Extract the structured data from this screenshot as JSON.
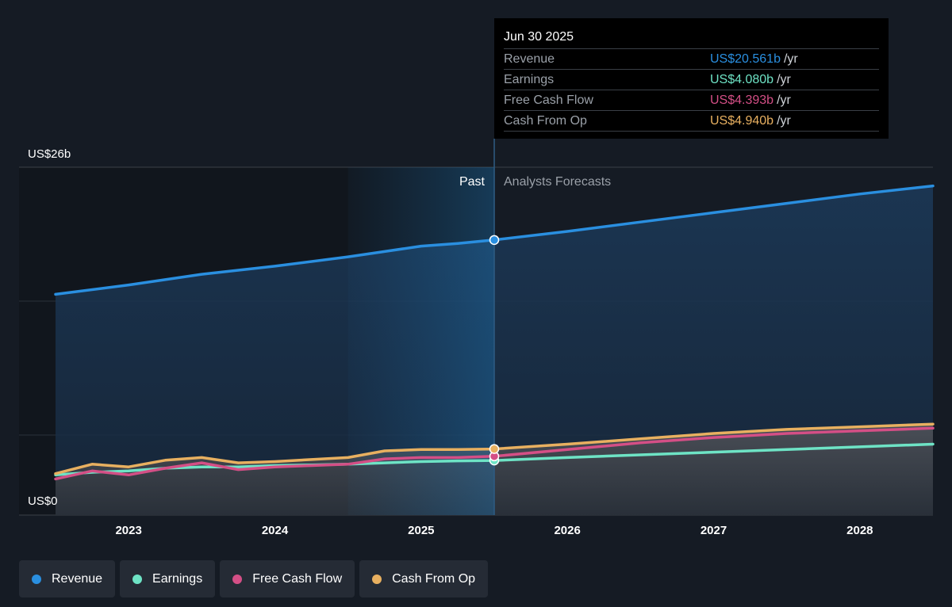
{
  "colors": {
    "revenue": "#2a8fe0",
    "earnings": "#6ee3c5",
    "free_cash_flow": "#d44f86",
    "cash_from_op": "#e8b060",
    "background": "#151b24",
    "grid": "#2c323c"
  },
  "tooltip": {
    "date": "Jun 30 2025",
    "rows": [
      {
        "label": "Revenue",
        "value": "US$20.561b",
        "unit": "/yr",
        "color": "#2a8fe0"
      },
      {
        "label": "Earnings",
        "value": "US$4.080b",
        "unit": "/yr",
        "color": "#6ee3c5"
      },
      {
        "label": "Free Cash Flow",
        "value": "US$4.393b",
        "unit": "/yr",
        "color": "#d44f86"
      },
      {
        "label": "Cash From Op",
        "value": "US$4.940b",
        "unit": "/yr",
        "color": "#e8b060"
      }
    ]
  },
  "legend": [
    {
      "label": "Revenue",
      "color": "#2a8fe0"
    },
    {
      "label": "Earnings",
      "color": "#6ee3c5"
    },
    {
      "label": "Free Cash Flow",
      "color": "#d44f86"
    },
    {
      "label": "Cash From Op",
      "color": "#e8b060"
    }
  ],
  "chart_data": {
    "type": "area",
    "title": "",
    "ylabel_top": "US$26b",
    "ylabel_bottom": "US$0",
    "ylim": [
      0,
      26
    ],
    "xlim": [
      2022.5,
      2028.5
    ],
    "x_ticks": [
      2023,
      2024,
      2025,
      2026,
      2027,
      2028
    ],
    "x_tick_labels": [
      "2023",
      "2024",
      "2025",
      "2026",
      "2027",
      "2028"
    ],
    "past_label": "Past",
    "forecast_label": "Analysts Forecasts",
    "past_highlight_start": 2024.5,
    "divider_x": 2025.5,
    "grid": true,
    "legend_position": "bottom",
    "series": [
      {
        "name": "Revenue",
        "color": "#2a8fe0",
        "x": [
          2022.5,
          2023.0,
          2023.5,
          2024.0,
          2024.5,
          2024.75,
          2025.0,
          2025.25,
          2025.5,
          2026.0,
          2026.5,
          2027.0,
          2027.5,
          2028.0,
          2028.5
        ],
        "y": [
          16.5,
          17.2,
          18.0,
          18.6,
          19.3,
          19.7,
          20.1,
          20.3,
          20.561,
          21.2,
          21.9,
          22.6,
          23.3,
          24.0,
          24.6
        ]
      },
      {
        "name": "Earnings",
        "color": "#6ee3c5",
        "x": [
          2022.5,
          2022.75,
          2023.0,
          2023.25,
          2023.5,
          2023.75,
          2024.0,
          2024.25,
          2024.5,
          2024.75,
          2025.0,
          2025.25,
          2025.5,
          2026.0,
          2026.5,
          2027.0,
          2027.5,
          2028.0,
          2028.5
        ],
        "y": [
          3.0,
          3.2,
          3.3,
          3.5,
          3.6,
          3.6,
          3.7,
          3.75,
          3.8,
          3.9,
          4.0,
          4.05,
          4.08,
          4.3,
          4.5,
          4.7,
          4.9,
          5.1,
          5.3
        ]
      },
      {
        "name": "Free Cash Flow",
        "color": "#d44f86",
        "x": [
          2022.5,
          2022.75,
          2023.0,
          2023.25,
          2023.5,
          2023.75,
          2024.0,
          2024.25,
          2024.5,
          2024.75,
          2025.0,
          2025.25,
          2025.5,
          2026.0,
          2026.5,
          2027.0,
          2027.5,
          2028.0,
          2028.5
        ],
        "y": [
          2.7,
          3.3,
          3.0,
          3.5,
          3.9,
          3.4,
          3.6,
          3.7,
          3.8,
          4.2,
          4.3,
          4.3,
          4.393,
          4.9,
          5.4,
          5.8,
          6.1,
          6.3,
          6.5
        ]
      },
      {
        "name": "Cash From Op",
        "color": "#e8b060",
        "x": [
          2022.5,
          2022.75,
          2023.0,
          2023.25,
          2023.5,
          2023.75,
          2024.0,
          2024.25,
          2024.5,
          2024.75,
          2025.0,
          2025.25,
          2025.5,
          2026.0,
          2026.5,
          2027.0,
          2027.5,
          2028.0,
          2028.5
        ],
        "y": [
          3.1,
          3.8,
          3.6,
          4.1,
          4.3,
          3.9,
          4.0,
          4.15,
          4.3,
          4.8,
          4.9,
          4.9,
          4.94,
          5.3,
          5.7,
          6.1,
          6.4,
          6.6,
          6.8
        ]
      }
    ]
  }
}
